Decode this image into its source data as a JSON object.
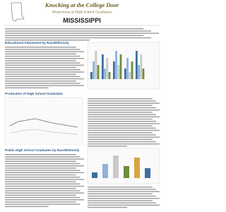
{
  "header": {
    "title": "Knocking at the College Door",
    "subtitle": "Projections of High School Graduates",
    "state": "MISSISSIPPI"
  },
  "sections": [
    {
      "heading": "Educational Attainment by Race/Ethnicity"
    },
    {
      "heading": "Production of High School Graduates"
    },
    {
      "heading": "Public High School Graduates by Race/Ethnicity"
    }
  ]
}
